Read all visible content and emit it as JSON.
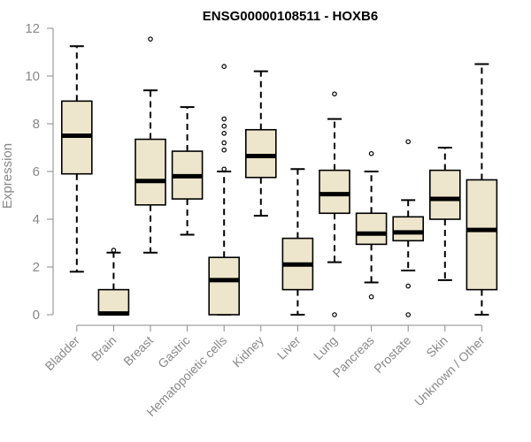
{
  "chart_data": {
    "type": "boxplot",
    "title": "ENSG00000108511 - HOXB6",
    "xlabel": "",
    "ylabel": "Expression",
    "ylim": [
      0,
      12
    ],
    "yticks": [
      "0",
      "2",
      "4",
      "6",
      "8",
      "10",
      "12"
    ],
    "box_color": "#eee6cc",
    "categories": [
      "Bladder",
      "Brain",
      "Breast",
      "Gastric",
      "Hematopoietic cells",
      "Kidney",
      "Liver",
      "Lung",
      "Pancreas",
      "Prostate",
      "Skin",
      "Unknown / Other"
    ],
    "boxes": [
      {
        "min": 1.8,
        "q1": 5.9,
        "median": 7.5,
        "q3": 8.95,
        "max": 11.25,
        "outliers": []
      },
      {
        "min": 0.0,
        "q1": 0.0,
        "median": 0.05,
        "q3": 1.05,
        "max": 2.6,
        "outliers": [
          2.7
        ]
      },
      {
        "min": 2.6,
        "q1": 4.6,
        "median": 5.6,
        "q3": 7.35,
        "max": 9.4,
        "outliers": [
          11.55
        ]
      },
      {
        "min": 3.35,
        "q1": 4.85,
        "median": 5.8,
        "q3": 6.85,
        "max": 8.7,
        "outliers": []
      },
      {
        "min": 0.0,
        "q1": 0.0,
        "median": 1.45,
        "q3": 2.4,
        "max": 6.0,
        "outliers": [
          6.1,
          6.9,
          7.2,
          7.6,
          7.9,
          8.2,
          10.4
        ]
      },
      {
        "min": 4.15,
        "q1": 5.75,
        "median": 6.65,
        "q3": 7.75,
        "max": 10.2,
        "outliers": []
      },
      {
        "min": 0.0,
        "q1": 1.05,
        "median": 2.1,
        "q3": 3.2,
        "max": 6.1,
        "outliers": []
      },
      {
        "min": 2.2,
        "q1": 4.25,
        "median": 5.05,
        "q3": 6.05,
        "max": 8.2,
        "outliers": [
          0.0,
          9.25
        ]
      },
      {
        "min": 1.35,
        "q1": 2.95,
        "median": 3.4,
        "q3": 4.25,
        "max": 6.0,
        "outliers": [
          0.75,
          6.75
        ]
      },
      {
        "min": 1.85,
        "q1": 3.1,
        "median": 3.45,
        "q3": 4.1,
        "max": 4.8,
        "outliers": [
          0.0,
          1.2,
          7.25
        ]
      },
      {
        "min": 1.45,
        "q1": 4.0,
        "median": 4.85,
        "q3": 6.05,
        "max": 7.0,
        "outliers": []
      },
      {
        "min": 0.0,
        "q1": 1.05,
        "median": 3.55,
        "q3": 5.65,
        "max": 10.5,
        "outliers": []
      }
    ]
  }
}
